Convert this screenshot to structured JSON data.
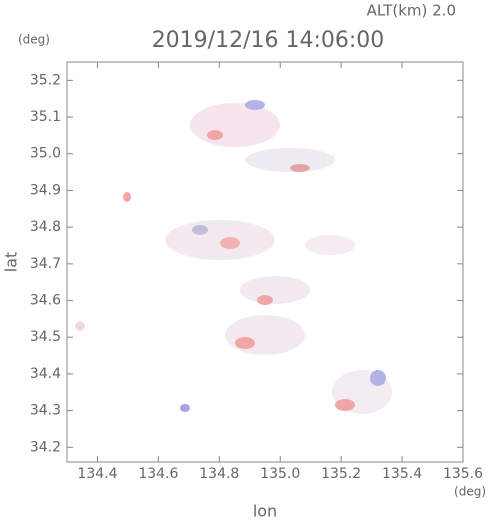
{
  "chart_data": {
    "type": "scatter",
    "title": "2019/12/16 14:06:00",
    "subtitle": "ALT(km) 2.0",
    "y_unit": "(deg)",
    "x_unit": "(deg)",
    "xlabel": "lon",
    "ylabel": "lat",
    "xlim": [
      134.3,
      135.6
    ],
    "ylim": [
      34.16,
      35.25
    ],
    "xticks": [
      134.4,
      134.6,
      134.8,
      {
        "value": 135,
        "label": "135.0"
      },
      135.2,
      135.4,
      135.6
    ],
    "yticks": [
      34.2,
      34.3,
      34.4,
      34.5,
      34.6,
      34.7,
      34.8,
      34.9,
      {
        "value": 35,
        "label": "35.0"
      },
      35.1,
      35.2
    ]
  }
}
